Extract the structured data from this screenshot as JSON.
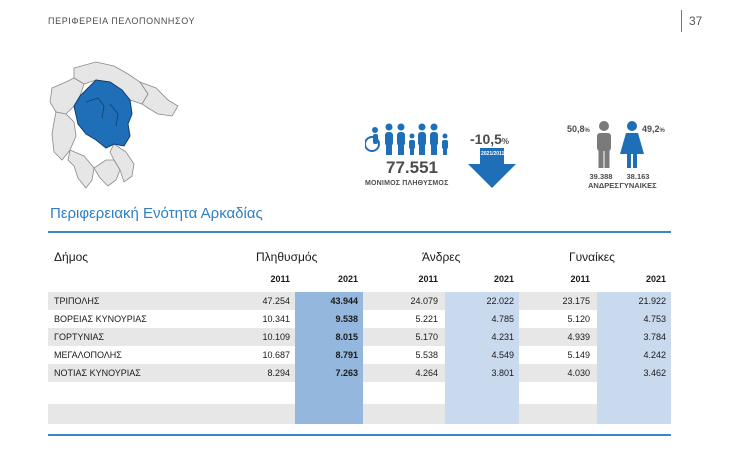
{
  "header": {
    "title": "ΠΕΡΙΦΕΡΕΙΑ ΠΕΛΟΠΟΝΝΗΣΟΥ",
    "page_number": "37"
  },
  "infographic": {
    "population_total": "77.551",
    "population_label": "ΜΟΝΙΜΟΣ ΠΛΗΘΥΣΜΟΣ",
    "change_value": "-10,5",
    "change_unit": "%",
    "arrow_label": "2021/2011",
    "male_pct": "50,8",
    "female_pct": "49,2",
    "pct_unit": "%",
    "male_count": "39.388",
    "female_count": "38.163",
    "male_label": "ΑΝΔΡΕΣ",
    "female_label": "ΓΥΝΑΙΚΕΣ",
    "colors": {
      "accent": "#2f7fc4",
      "map_highlight": "#1f6fb8",
      "icon_gray": "#7a7a7a"
    }
  },
  "section_title": "Περιφερειακή Ενότητα Αρκαδίας",
  "table": {
    "headers": {
      "municipality": "Δήμος",
      "population": "Πληθυσμός",
      "men": "Άνδρες",
      "women": "Γυναίκες"
    },
    "years": [
      "2011",
      "2021"
    ],
    "rows": [
      {
        "name": "ΤΡΙΠΟΛΗΣ",
        "pop2011": "47.254",
        "pop2021": "43.944",
        "men2011": "24.079",
        "men2021": "22.022",
        "women2011": "23.175",
        "women2021": "21.922"
      },
      {
        "name": "ΒΟΡΕΙΑΣ ΚΥΝΟΥΡΙΑΣ",
        "pop2011": "10.341",
        "pop2021": "9.538",
        "men2011": "5.221",
        "men2021": "4.785",
        "women2011": "5.120",
        "women2021": "4.753"
      },
      {
        "name": "ΓΟΡΤΥΝΙΑΣ",
        "pop2011": "10.109",
        "pop2021": "8.015",
        "men2011": "5.170",
        "men2021": "4.231",
        "women2011": "4.939",
        "women2021": "3.784"
      },
      {
        "name": "ΜΕΓΑΛΟΠΟΛΗΣ",
        "pop2011": "10.687",
        "pop2021": "8.791",
        "men2011": "5.538",
        "men2021": "4.549",
        "women2011": "5.149",
        "women2021": "4.242"
      },
      {
        "name": "ΝΟΤΙΑΣ ΚΥΝΟΥΡΙΑΣ",
        "pop2011": "8.294",
        "pop2021": "7.263",
        "men2011": "4.264",
        "men2021": "3.801",
        "women2011": "4.030",
        "women2021": "3.462"
      }
    ]
  }
}
